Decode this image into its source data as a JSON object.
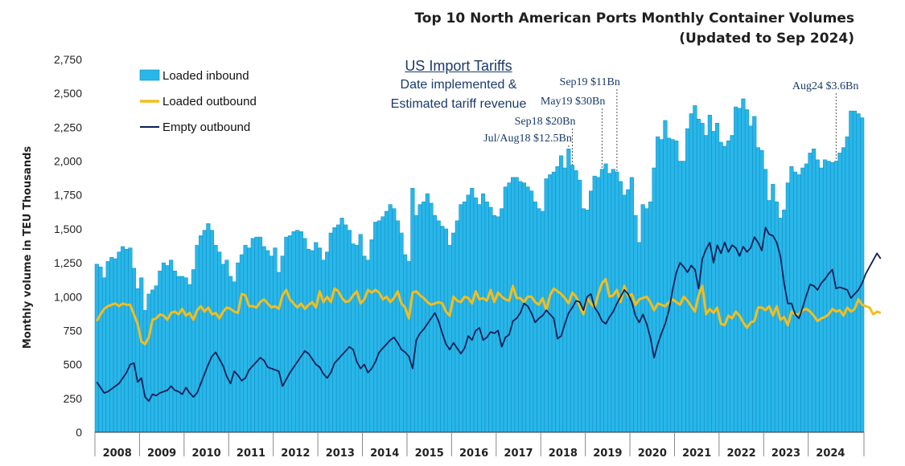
{
  "chart_data": {
    "type": "bar+line",
    "title_lines": [
      "Top 10 North American Ports Monthly Container Volumes",
      "(Updated to Sep 2024)"
    ],
    "ylabel": "Monthly volume in TEU Thousands",
    "ylim": [
      0,
      2750
    ],
    "yticks": [
      "0",
      "250",
      "500",
      "750",
      "1,000",
      "1,250",
      "1,500",
      "1,750",
      "2,000",
      "2,250",
      "2,500",
      "2,750"
    ],
    "years": [
      "2008",
      "2009",
      "2010",
      "2011",
      "2012",
      "2013",
      "2014",
      "2015",
      "2016",
      "2017",
      "2018",
      "2019",
      "2020",
      "2021",
      "2022",
      "2023",
      "2024"
    ],
    "start": "2008-01",
    "legend": [
      "Loaded inbound",
      "Loaded outbound",
      "Empty outbound"
    ],
    "colors": {
      "inbound": "#29b6e8",
      "inbound_edge": "#0e8cc2",
      "outbound": "#f5bd1c",
      "empty": "#0c1e55",
      "annotation": "#1a3a6b"
    },
    "annotation_heading": [
      "US Import Tariffs",
      "Date implemented &",
      "Estimated tariff revenue"
    ],
    "annotations": [
      {
        "label": "Jul/Aug18 $12.5Bn",
        "month_index": 127
      },
      {
        "label": "Sep18 $20Bn",
        "month_index": 128
      },
      {
        "label": "May19 $30Bn",
        "month_index": 136
      },
      {
        "label": "Sep19 $11Bn",
        "month_index": 140
      },
      {
        "label": "Aug24 $3.6Bn",
        "month_index": 199
      }
    ],
    "series": [
      {
        "name": "Loaded inbound",
        "values": [
          1240,
          1220,
          1140,
          1260,
          1290,
          1280,
          1330,
          1370,
          1350,
          1360,
          1210,
          1060,
          1140,
          900,
          1020,
          1050,
          1080,
          1190,
          1250,
          1230,
          1270,
          1190,
          1150,
          1150,
          1140,
          1090,
          1200,
          1380,
          1450,
          1490,
          1540,
          1490,
          1380,
          1330,
          1240,
          1270,
          1150,
          1110,
          1250,
          1310,
          1380,
          1360,
          1430,
          1440,
          1440,
          1370,
          1340,
          1300,
          1360,
          1180,
          1300,
          1440,
          1450,
          1480,
          1490,
          1480,
          1430,
          1350,
          1340,
          1400,
          1360,
          1270,
          1330,
          1470,
          1510,
          1530,
          1580,
          1530,
          1490,
          1390,
          1380,
          1460,
          1300,
          1270,
          1420,
          1550,
          1560,
          1590,
          1630,
          1680,
          1650,
          1560,
          1470,
          1310,
          1260,
          1800,
          1600,
          1680,
          1700,
          1760,
          1690,
          1600,
          1560,
          1520,
          1500,
          1380,
          1470,
          1560,
          1680,
          1700,
          1750,
          1800,
          1730,
          1680,
          1760,
          1700,
          1660,
          1600,
          1590,
          1650,
          1810,
          1840,
          1880,
          1880,
          1850,
          1840,
          1810,
          1780,
          1700,
          1650,
          1630,
          1870,
          1900,
          1920,
          1960,
          2040,
          1950,
          2090,
          1970,
          1930,
          1860,
          1650,
          1640,
          1780,
          1890,
          1880,
          1940,
          1980,
          1910,
          1940,
          1920,
          1850,
          1750,
          1790,
          1880,
          1600,
          1400,
          1680,
          1650,
          1700,
          1950,
          2180,
          2160,
          2300,
          2170,
          2160,
          2150,
          2000,
          2000,
          2240,
          2350,
          2410,
          2310,
          2280,
          2190,
          2340,
          2220,
          2280,
          2140,
          2110,
          2150,
          2190,
          2400,
          2390,
          2460,
          2380,
          2260,
          2330,
          2100,
          2080,
          1940,
          1710,
          1830,
          1700,
          1580,
          1640,
          1840,
          1960,
          1920,
          1900,
          1950,
          1980,
          2060,
          2090,
          2010,
          1950,
          2010,
          2000,
          1990,
          2000,
          2060,
          2100,
          2180,
          2370,
          2370,
          2350,
          2320
        ]
      },
      {
        "name": "Loaded outbound",
        "values": [
          820,
          870,
          910,
          930,
          940,
          950,
          930,
          950,
          940,
          940,
          870,
          800,
          670,
          650,
          700,
          830,
          840,
          870,
          860,
          830,
          880,
          890,
          870,
          910,
          860,
          880,
          830,
          900,
          930,
          890,
          920,
          870,
          880,
          840,
          890,
          920,
          910,
          890,
          880,
          1020,
          1010,
          930,
          930,
          920,
          960,
          980,
          950,
          920,
          930,
          910,
          1010,
          1050,
          980,
          950,
          920,
          950,
          910,
          940,
          960,
          920,
          1040,
          960,
          1000,
          960,
          1060,
          1040,
          990,
          960,
          970,
          1010,
          1040,
          950,
          980,
          1050,
          1030,
          1050,
          1030,
          980,
          1000,
          960,
          990,
          1040,
          950,
          920,
          840,
          1030,
          1040,
          1010,
          990,
          960,
          940,
          950,
          960,
          950,
          890,
          860,
          1000,
          970,
          960,
          1000,
          990,
          950,
          1040,
          980,
          990,
          970,
          1050,
          960,
          1030,
          1000,
          980,
          970,
          1080,
          990,
          990,
          960,
          1000,
          1000,
          960,
          940,
          990,
          900,
          1010,
          1060,
          1040,
          1020,
          990,
          950,
          1030,
          1000,
          930,
          870,
          990,
          950,
          920,
          1020,
          1100,
          1130,
          1000,
          1010,
          1050,
          960,
          1080,
          1000,
          1020,
          940,
          980,
          990,
          1000,
          960,
          900,
          950,
          940,
          930,
          960,
          980,
          960,
          940,
          1000,
          970,
          930,
          890,
          1010,
          1080,
          870,
          910,
          880,
          920,
          800,
          790,
          860,
          840,
          890,
          860,
          810,
          770,
          810,
          820,
          920,
          920,
          900,
          930,
          860,
          930,
          830,
          850,
          790,
          890,
          870,
          870,
          900,
          910,
          890,
          860,
          820,
          840,
          850,
          870,
          910,
          890,
          900,
          860,
          920,
          890,
          910,
          980,
          940,
          930,
          920,
          870,
          890,
          880
        ]
      },
      {
        "name": "Empty outbound",
        "values": [
          370,
          330,
          290,
          300,
          320,
          340,
          360,
          400,
          440,
          500,
          510,
          370,
          400,
          260,
          230,
          280,
          270,
          290,
          300,
          310,
          340,
          310,
          300,
          280,
          330,
          290,
          260,
          290,
          360,
          430,
          500,
          560,
          590,
          540,
          490,
          410,
          360,
          450,
          420,
          380,
          400,
          460,
          490,
          520,
          550,
          530,
          480,
          470,
          460,
          450,
          340,
          390,
          440,
          480,
          520,
          560,
          600,
          580,
          540,
          500,
          480,
          430,
          400,
          440,
          510,
          540,
          570,
          600,
          630,
          610,
          520,
          470,
          500,
          440,
          470,
          520,
          590,
          620,
          650,
          680,
          700,
          660,
          610,
          590,
          560,
          470,
          680,
          730,
          760,
          800,
          840,
          880,
          820,
          730,
          650,
          610,
          660,
          620,
          580,
          620,
          710,
          680,
          750,
          770,
          680,
          700,
          740,
          730,
          750,
          630,
          700,
          720,
          820,
          840,
          880,
          950,
          930,
          880,
          810,
          840,
          860,
          900,
          870,
          840,
          690,
          710,
          800,
          880,
          920,
          970,
          960,
          900,
          1000,
          1020,
          920,
          880,
          820,
          800,
          850,
          890,
          950,
          1000,
          1050,
          1020,
          960,
          860,
          810,
          870,
          800,
          700,
          550,
          650,
          730,
          800,
          900,
          1050,
          1180,
          1250,
          1220,
          1180,
          1230,
          1200,
          1060,
          1280,
          1350,
          1400,
          1250,
          1380,
          1320,
          1400,
          1330,
          1380,
          1360,
          1300,
          1370,
          1330,
          1360,
          1440,
          1400,
          1340,
          1510,
          1460,
          1450,
          1400,
          1300,
          1100,
          950,
          950,
          870,
          840,
          920,
          1010,
          1090,
          1080,
          1050,
          1100,
          1130,
          1170,
          1200,
          1060,
          1070,
          1060,
          1050,
          990,
          1020,
          1050,
          1100,
          1170,
          1220,
          1270,
          1320,
          1280
        ]
      }
    ]
  }
}
